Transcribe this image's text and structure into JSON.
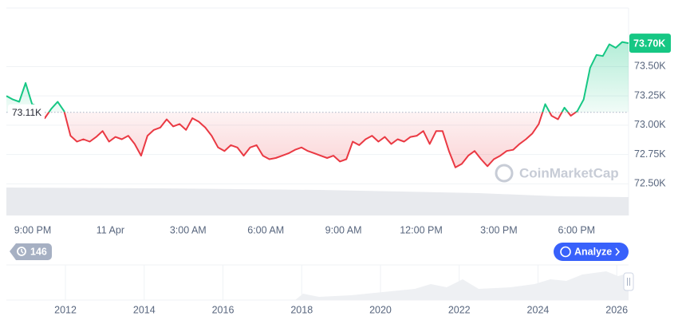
{
  "chart_data": {
    "type": "line",
    "watermark": "CoinMarketCap",
    "x_labels": [
      "9:00 PM",
      "11 Apr",
      "3:00 AM",
      "6:00 AM",
      "9:00 AM",
      "12:00 PM",
      "3:00 PM",
      "6:00 PM"
    ],
    "values": [
      73250,
      73220,
      73200,
      73360,
      73180,
      73160,
      73060,
      73140,
      73200,
      73120,
      72910,
      72860,
      72880,
      72860,
      72900,
      72950,
      72860,
      72900,
      72880,
      72910,
      72840,
      72740,
      72910,
      72960,
      72980,
      73050,
      72990,
      73010,
      72960,
      73060,
      73030,
      72980,
      72910,
      72810,
      72780,
      72830,
      72810,
      72740,
      72810,
      72830,
      72740,
      72710,
      72720,
      72740,
      72760,
      72790,
      72810,
      72780,
      72760,
      72740,
      72720,
      72740,
      72690,
      72710,
      72860,
      72830,
      72880,
      72910,
      72860,
      72900,
      72840,
      72880,
      72860,
      72900,
      72910,
      72950,
      72840,
      72950,
      72950,
      72780,
      72640,
      72670,
      72740,
      72780,
      72710,
      72650,
      72710,
      72740,
      72780,
      72790,
      72840,
      72880,
      72930,
      73010,
      73180,
      73080,
      73050,
      73150,
      73080,
      73120,
      73220,
      73490,
      73600,
      73590,
      73690,
      73660,
      73710,
      73700
    ],
    "colors": {
      "up": "#16c784",
      "down": "#ea3943"
    },
    "ylim": [
      72230,
      74000
    ],
    "yticks": [
      {
        "value": 72500,
        "label": "72.50K"
      },
      {
        "value": 72750,
        "label": "72.75K"
      },
      {
        "value": 73000,
        "label": "73.00K"
      },
      {
        "value": 73250,
        "label": "73.25K"
      },
      {
        "value": 73500,
        "label": "73.50K"
      }
    ],
    "baseline": {
      "value": 73110,
      "label": "73.11K"
    },
    "last": {
      "value": 73700,
      "label": "73.70K"
    },
    "grid": true
  },
  "navigator": {
    "xlim": [
      2010.5,
      2026.3
    ],
    "xticks": [
      2012,
      2014,
      2016,
      2018,
      2020,
      2022,
      2024,
      2026
    ]
  },
  "controls": {
    "history_count": 146,
    "analyze": "Analyze"
  }
}
